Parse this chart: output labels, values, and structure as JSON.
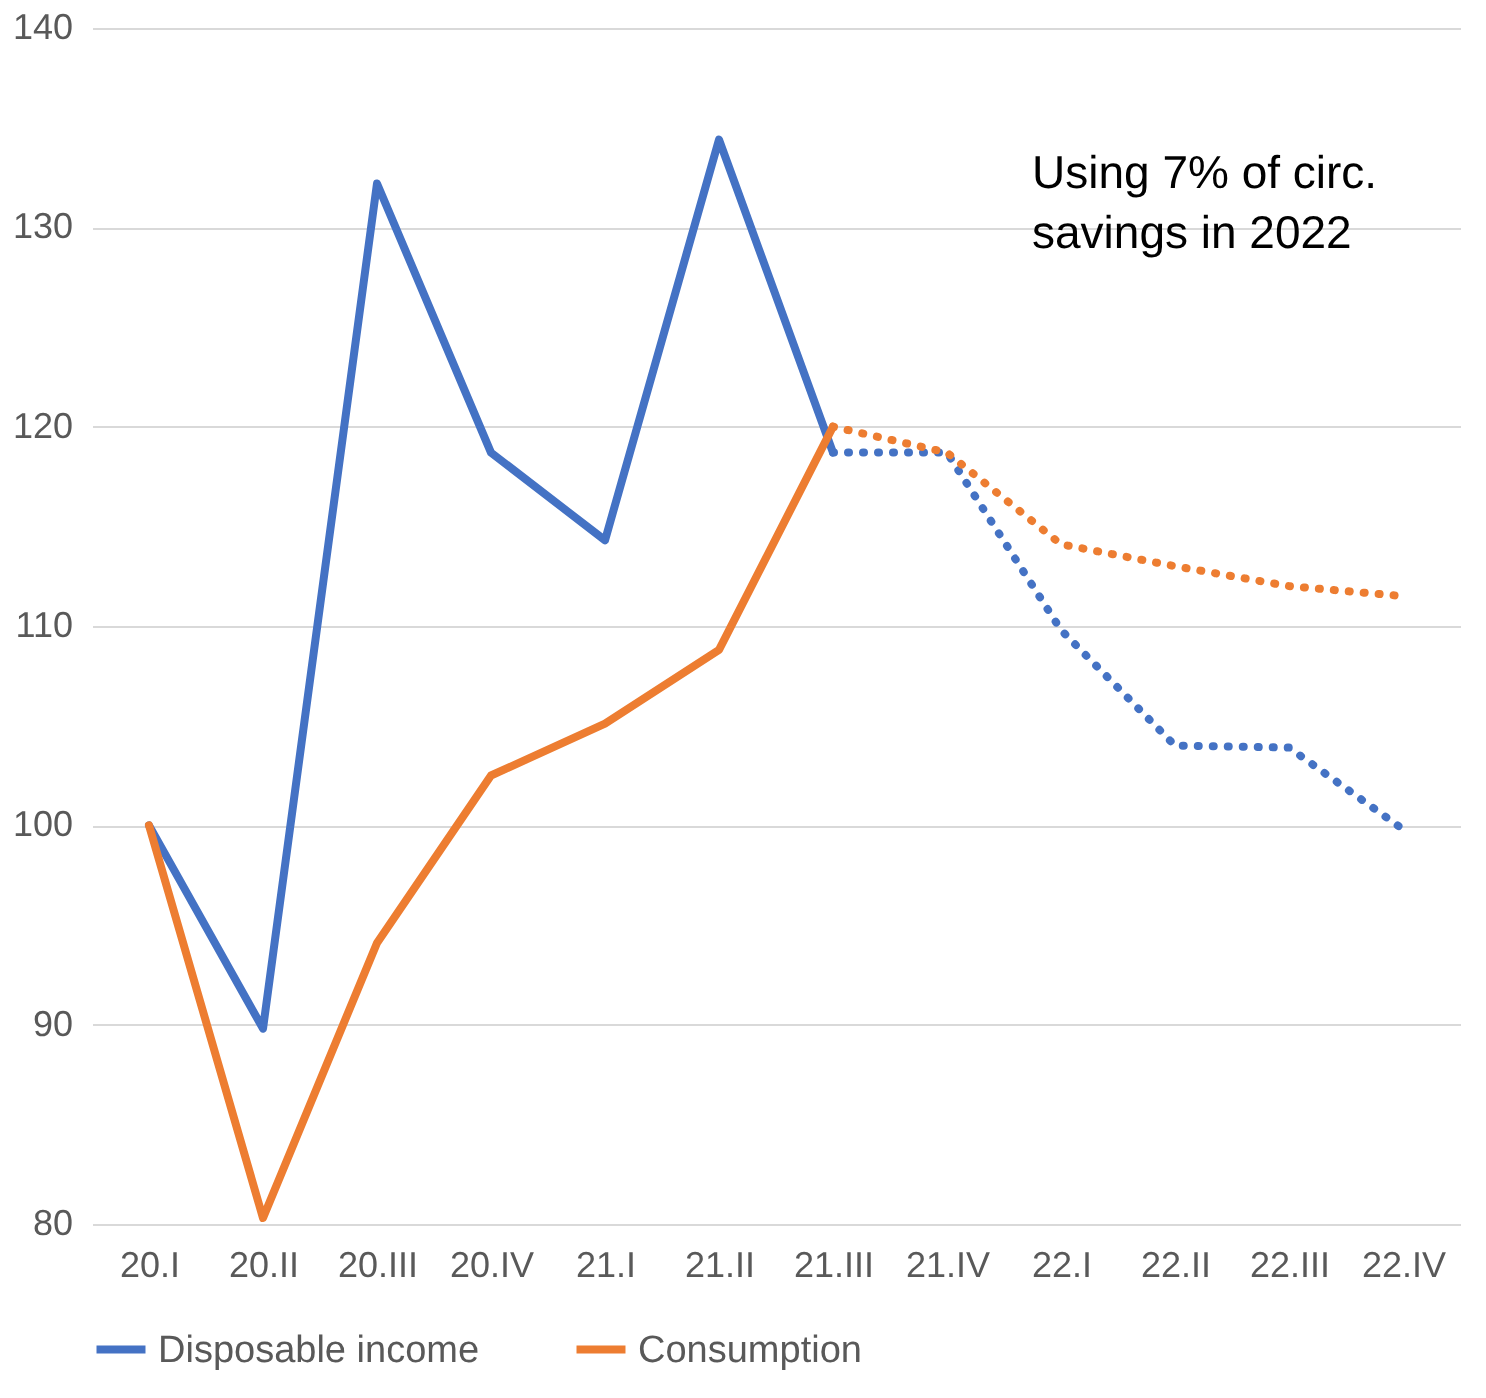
{
  "chart_data": {
    "type": "line",
    "categories": [
      "20.I",
      "20.II",
      "20.III",
      "20.IV",
      "21.I",
      "21.II",
      "21.III",
      "21.IV",
      "22.I",
      "22.II",
      "22.III",
      "22.IV"
    ],
    "series": [
      {
        "name": "Disposable income",
        "color": "#4472c4",
        "line_style": "solid",
        "values": [
          100,
          89.8,
          132.2,
          118.7,
          114.3,
          134.4,
          118.7,
          null,
          null,
          null,
          null,
          null
        ]
      },
      {
        "name": "Consumption",
        "color": "#ed7d31",
        "line_style": "solid",
        "values": [
          100,
          80.3,
          94.1,
          102.5,
          105.1,
          108.8,
          120,
          null,
          null,
          null,
          null,
          null
        ]
      },
      {
        "color": "#4472c4",
        "line_style": "dotted",
        "values": [
          null,
          null,
          null,
          null,
          null,
          null,
          118.7,
          118.7,
          109.8,
          104,
          103.9,
          99.8
        ]
      },
      {
        "color": "#ed7d31",
        "line_style": "dotted",
        "values": [
          null,
          null,
          null,
          null,
          null,
          null,
          120,
          118.7,
          114.1,
          113,
          112,
          111.5
        ]
      }
    ],
    "ylim": [
      80,
      140
    ],
    "yticks": [
      80,
      90,
      100,
      110,
      120,
      130,
      140
    ],
    "grid": "y",
    "legend": "bottom",
    "marker": "none",
    "annotations": [
      {
        "text": "Using 7% of circ.\nsavings in 2022"
      }
    ]
  }
}
